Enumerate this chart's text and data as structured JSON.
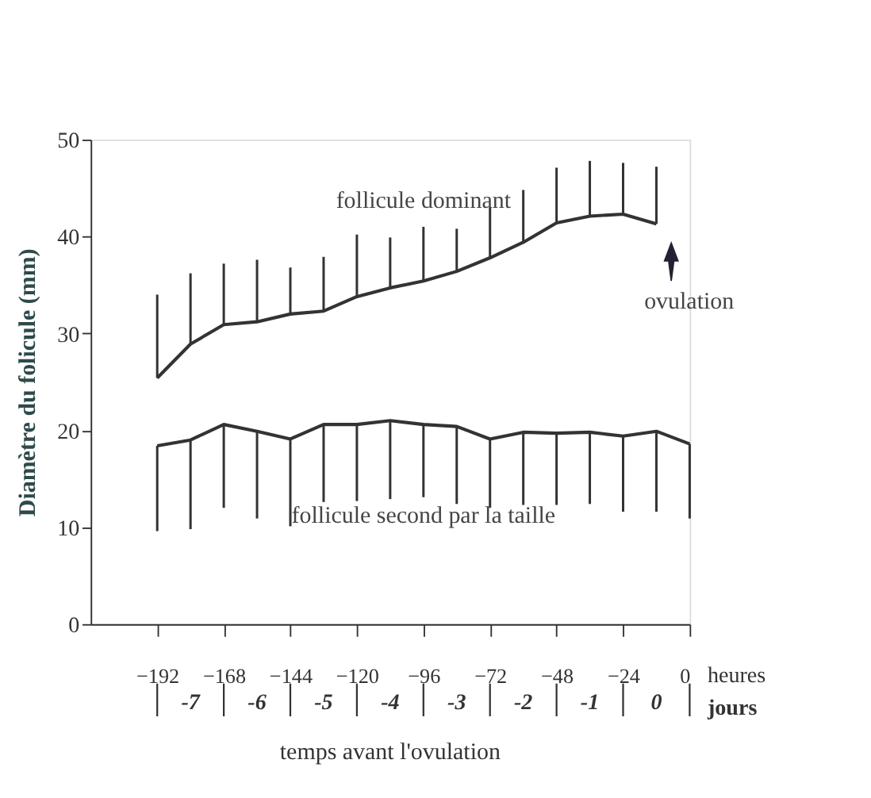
{
  "chart_data": {
    "type": "line",
    "ylabel": "Diamètre du folicule (mm)",
    "xlabel": "temps avant l'ovulation",
    "series": [
      {
        "name": "follicule dominant",
        "color": "#333333",
        "x": [
          -192,
          -180,
          -168,
          -156,
          -144,
          -132,
          -120,
          -108,
          -96,
          -84,
          -72,
          -60,
          -48,
          -36,
          -24,
          -12
        ],
        "values": [
          25.4,
          28.9,
          30.9,
          31.2,
          32.0,
          32.3,
          33.8,
          34.7,
          35.4,
          36.4,
          37.8,
          39.4,
          41.4,
          42.1,
          42.3,
          41.3
        ],
        "errors": [
          [
            25.4,
            34.0
          ],
          [
            28.9,
            36.2
          ],
          [
            30.9,
            37.2
          ],
          [
            31.2,
            37.6
          ],
          [
            32.0,
            36.8
          ],
          [
            32.3,
            37.9
          ],
          [
            33.8,
            40.2
          ],
          [
            34.7,
            39.9
          ],
          [
            35.4,
            41.0
          ],
          [
            36.4,
            40.8
          ],
          [
            37.8,
            43.0
          ],
          [
            39.4,
            44.8
          ],
          [
            41.4,
            47.1
          ],
          [
            42.1,
            47.8
          ],
          [
            42.3,
            47.6
          ],
          [
            41.3,
            47.2
          ]
        ]
      },
      {
        "name": "follicule second par la taille",
        "color": "#333333",
        "x": [
          -192,
          -180,
          -168,
          -156,
          -144,
          -132,
          -120,
          -108,
          -96,
          -84,
          -72,
          -60,
          -48,
          -36,
          -24,
          -12,
          0
        ],
        "values": [
          18.4,
          19.0,
          20.6,
          19.9,
          19.1,
          20.6,
          20.6,
          21.0,
          20.6,
          20.4,
          19.1,
          19.8,
          19.7,
          19.8,
          19.4,
          19.9,
          18.6
        ],
        "errors": [
          [
            9.6,
            18.4
          ],
          [
            9.8,
            19.0
          ],
          [
            12.0,
            20.6
          ],
          [
            10.9,
            19.9
          ],
          [
            10.1,
            19.1
          ],
          [
            12.6,
            20.6
          ],
          [
            12.7,
            20.6
          ],
          [
            12.9,
            21.0
          ],
          [
            13.1,
            20.6
          ],
          [
            12.4,
            20.4
          ],
          [
            12.0,
            19.1
          ],
          [
            12.3,
            19.8
          ],
          [
            12.3,
            19.7
          ],
          [
            12.4,
            19.8
          ],
          [
            11.6,
            19.4
          ],
          [
            11.6,
            19.9
          ],
          [
            10.9,
            18.6
          ]
        ]
      }
    ],
    "xlim": [
      -216,
      0
    ],
    "xticks": [
      -192,
      -168,
      -144,
      -120,
      -96,
      -72,
      -48,
      -24,
      0
    ],
    "ylim": [
      0,
      50
    ],
    "yticks": [
      0,
      10,
      20,
      30,
      40,
      50
    ],
    "annotations": [
      {
        "text": "ovulation",
        "x": -12,
        "y": 41.3
      },
      "heures",
      "jours",
      "-7",
      "-6",
      "-5",
      "-4",
      "-3",
      "-2",
      "-1",
      "0"
    ],
    "marker": "none",
    "line_style": "solid"
  }
}
